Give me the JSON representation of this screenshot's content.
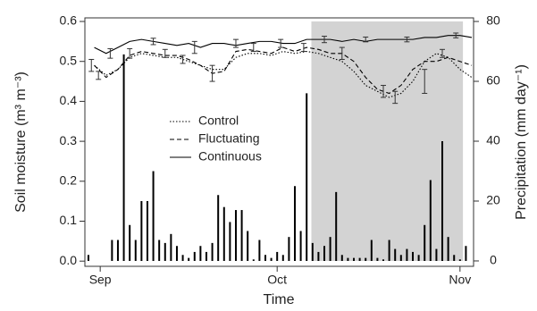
{
  "chart_data": {
    "type": "line",
    "x_label": "Time",
    "y_label": "Soil moisture (m³ m⁻³)",
    "y2_label": "Precipitation (mm day⁻¹)",
    "xlim": [
      -2.6,
      63.3
    ],
    "xticks": [
      {
        "value": 0,
        "label": "Sep"
      },
      {
        "value": 30,
        "label": "Oct"
      },
      {
        "value": 61,
        "label": "Nov"
      }
    ],
    "ylim": [
      -0.013,
      0.609
    ],
    "yticks": [
      {
        "value": 0,
        "label": "0.0"
      },
      {
        "value": 0.1,
        "label": "0.1"
      },
      {
        "value": 0.2,
        "label": "0.2"
      },
      {
        "value": 0.3,
        "label": "0.3"
      },
      {
        "value": 0.4,
        "label": "0.4"
      },
      {
        "value": 0.5,
        "label": "0.5"
      },
      {
        "value": 0.6,
        "label": "0.6"
      }
    ],
    "y2lim": [
      -1.8,
      81.2
    ],
    "y2ticks": [
      0,
      20,
      40,
      60,
      80
    ],
    "shaded": [
      35.8,
      61.5
    ],
    "shade_color": "#d3d3d3",
    "x": [
      -1,
      1,
      3,
      5,
      7,
      9,
      11,
      13,
      15,
      17,
      19,
      21,
      23,
      25,
      27,
      29,
      31,
      33,
      35,
      37,
      39,
      41,
      43,
      45,
      47,
      49,
      51,
      53,
      55,
      57,
      59,
      61,
      63
    ],
    "series": [
      {
        "name": "Control",
        "color": "#000000",
        "dash": "dotted",
        "values": [
          0.49,
          0.465,
          0.48,
          0.51,
          0.52,
          0.515,
          0.51,
          0.51,
          0.5,
          0.49,
          0.48,
          0.48,
          0.51,
          0.52,
          0.52,
          0.515,
          0.525,
          0.52,
          0.525,
          0.52,
          0.51,
          0.5,
          0.475,
          0.44,
          0.425,
          0.41,
          0.42,
          0.45,
          0.5,
          0.52,
          0.51,
          0.48,
          0.46
        ]
      },
      {
        "name": "Fluctuating",
        "color": "#000000",
        "dash": "dashed",
        "values": [
          0.49,
          0.46,
          0.48,
          0.515,
          0.525,
          0.52,
          0.515,
          0.515,
          0.505,
          0.49,
          0.47,
          0.475,
          0.525,
          0.53,
          0.525,
          0.52,
          0.535,
          0.525,
          0.535,
          0.53,
          0.52,
          0.52,
          0.5,
          0.46,
          0.43,
          0.42,
          0.44,
          0.48,
          0.5,
          0.5,
          0.51,
          0.5,
          0.49
        ]
      },
      {
        "name": "Continuous",
        "color": "#000000",
        "dash": "solid",
        "values": [
          0.535,
          0.52,
          0.535,
          0.55,
          0.555,
          0.55,
          0.545,
          0.54,
          0.545,
          0.535,
          0.545,
          0.545,
          0.54,
          0.545,
          0.55,
          0.55,
          0.545,
          0.545,
          0.555,
          0.555,
          0.555,
          0.55,
          0.555,
          0.55,
          0.555,
          0.555,
          0.555,
          0.555,
          0.56,
          0.56,
          0.565,
          0.565,
          0.56
        ]
      }
    ],
    "error_bars": {
      "x": [
        -1.5,
        -0.3,
        1.7,
        5,
        9,
        11,
        14,
        16,
        19,
        23,
        26,
        30.6,
        34.5,
        38,
        41,
        45,
        48,
        50,
        52,
        55,
        58,
        60.3
      ],
      "values": [
        0.49,
        0.465,
        0.52,
        0.52,
        0.55,
        0.52,
        0.505,
        0.535,
        0.47,
        0.545,
        0.535,
        0.545,
        0.535,
        0.555,
        0.52,
        0.555,
        0.425,
        0.41,
        0.555,
        0.45,
        0.52,
        0.565
      ],
      "errors": [
        0.015,
        0.01,
        0.012,
        0.012,
        0.008,
        0.01,
        0.01,
        0.015,
        0.02,
        0.01,
        0.01,
        0.01,
        0.01,
        0.008,
        0.015,
        0.006,
        0.015,
        0.015,
        0.006,
        0.03,
        0.01,
        0.006
      ]
    },
    "precipitation": {
      "color": "#000000",
      "x": [
        -2,
        2,
        3,
        4,
        5,
        6,
        7,
        8,
        9,
        10,
        11,
        12,
        13,
        14,
        15,
        16,
        17,
        18,
        19,
        20,
        21,
        22,
        23,
        24,
        25,
        26,
        27,
        28,
        29,
        30,
        31,
        32,
        33,
        34,
        35,
        36,
        37,
        38,
        39,
        40,
        41,
        42,
        43,
        44,
        45,
        46,
        47,
        48,
        49,
        50,
        51,
        52,
        53,
        54,
        55,
        56,
        57,
        58,
        59,
        60,
        61,
        62
      ],
      "values": [
        2,
        7,
        7,
        69,
        12,
        7,
        20,
        20,
        30,
        7,
        6,
        9,
        5,
        2,
        1,
        3,
        5,
        3,
        6,
        22,
        18,
        13,
        17,
        17,
        10,
        0.5,
        7,
        2,
        1,
        3,
        2,
        8,
        25,
        10,
        56,
        6,
        3,
        5,
        8,
        23,
        2,
        1,
        1,
        1,
        1,
        7,
        1,
        0.5,
        7,
        4,
        2,
        4,
        3,
        2,
        12,
        27,
        4,
        40,
        8,
        2,
        0.5,
        5
      ]
    },
    "legend": "center-left"
  }
}
